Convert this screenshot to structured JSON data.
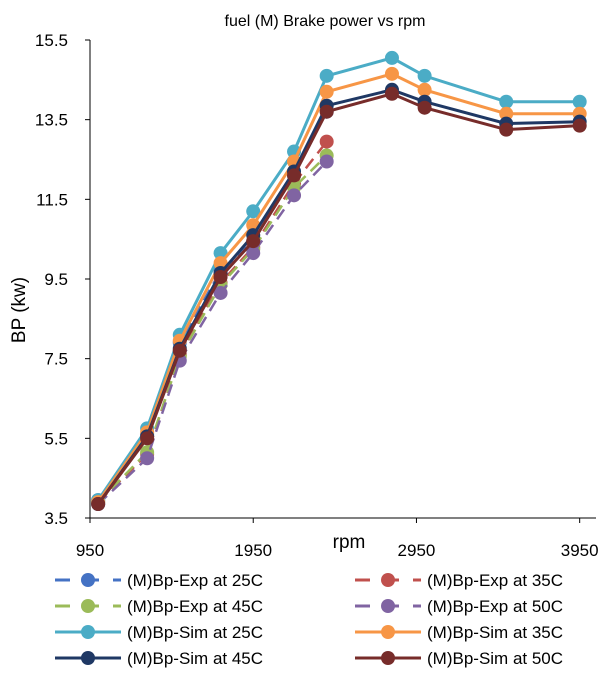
{
  "chart_data": {
    "type": "line",
    "title": "fuel (M) Brake power vs rpm",
    "xlabel": "rpm",
    "ylabel": "BP (kw)",
    "xlim": [
      950,
      4050
    ],
    "ylim": [
      3.5,
      15.5
    ],
    "xticks": [
      950,
      1950,
      2950,
      3950
    ],
    "yticks": [
      3.5,
      5.5,
      7.5,
      9.5,
      11.5,
      13.5,
      15.5
    ],
    "x_tick_labels": [
      "950",
      "1950",
      "2950",
      "3950"
    ],
    "y_tick_labels": [
      "3.5",
      "5.5",
      "7.5",
      "9.5",
      "11.5",
      "13.5",
      "15.5"
    ],
    "grid": false,
    "legend_position": "bottom",
    "series": [
      {
        "name": "(M)Bp-Exp at 25C",
        "color": "#4472c4",
        "style": "dashed",
        "x": [
          1000,
          1300,
          1500,
          1750,
          1950,
          2200,
          2400
        ],
        "y": [
          3.95,
          5.6,
          7.9,
          9.7,
          10.45,
          12.1,
          13.7
        ]
      },
      {
        "name": "(M)Bp-Exp at 35C",
        "color": "#c0504d",
        "style": "dashed",
        "x": [
          1000,
          1300,
          1500,
          1750,
          1950,
          2200,
          2400
        ],
        "y": [
          3.9,
          5.1,
          7.6,
          9.4,
          10.3,
          11.9,
          12.95
        ]
      },
      {
        "name": "(M)Bp-Exp at 45C",
        "color": "#9bbb59",
        "style": "dashed",
        "x": [
          1000,
          1300,
          1500,
          1750,
          1950,
          2200,
          2400
        ],
        "y": [
          3.9,
          5.15,
          7.55,
          9.35,
          10.25,
          11.8,
          12.6
        ]
      },
      {
        "name": "(M)Bp-Exp at 50C",
        "color": "#8064a2",
        "style": "dashed",
        "x": [
          1000,
          1300,
          1500,
          1750,
          1950,
          2200,
          2400
        ],
        "y": [
          3.85,
          5.0,
          7.45,
          9.15,
          10.15,
          11.6,
          12.45
        ]
      },
      {
        "name": "(M)Bp-Sim at 25C",
        "color": "#4bacc6",
        "style": "solid",
        "x": [
          1000,
          1300,
          1500,
          1750,
          1950,
          2200,
          2400,
          2800,
          3000,
          3500,
          3950
        ],
        "y": [
          3.95,
          5.75,
          8.1,
          10.15,
          11.2,
          12.7,
          14.6,
          15.05,
          14.6,
          13.95,
          13.95
        ]
      },
      {
        "name": "(M)Bp-Sim at 35C",
        "color": "#f79646",
        "style": "solid",
        "x": [
          1000,
          1300,
          1500,
          1750,
          1950,
          2200,
          2400,
          2800,
          3000,
          3500,
          3950
        ],
        "y": [
          3.9,
          5.65,
          7.95,
          9.9,
          10.85,
          12.45,
          14.2,
          14.65,
          14.25,
          13.65,
          13.65
        ]
      },
      {
        "name": "(M)Bp-Sim at 45C",
        "color": "#1f3864",
        "style": "solid",
        "x": [
          1000,
          1300,
          1500,
          1750,
          1950,
          2200,
          2400,
          2800,
          3000,
          3500,
          3950
        ],
        "y": [
          3.85,
          5.55,
          7.75,
          9.65,
          10.6,
          12.2,
          13.85,
          14.25,
          13.95,
          13.4,
          13.45
        ]
      },
      {
        "name": "(M)Bp-Sim at 50C",
        "color": "#772c2a",
        "style": "solid",
        "x": [
          1000,
          1300,
          1500,
          1750,
          1950,
          2200,
          2400,
          2800,
          3000,
          3500,
          3950
        ],
        "y": [
          3.85,
          5.5,
          7.7,
          9.55,
          10.45,
          12.1,
          13.7,
          14.15,
          13.8,
          13.25,
          13.35
        ]
      }
    ]
  }
}
